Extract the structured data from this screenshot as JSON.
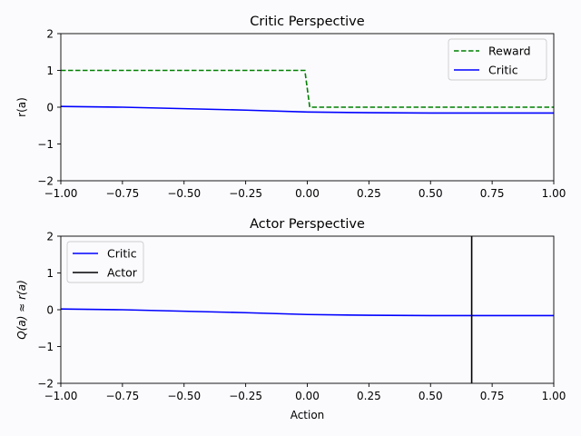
{
  "chart_data": [
    {
      "type": "line",
      "title": "Critic Perspective",
      "xlabel": "",
      "ylabel": "r(a)",
      "xlim": [
        -1.0,
        1.0
      ],
      "ylim": [
        -2,
        2
      ],
      "xticks": [
        "−1.00",
        "−0.75",
        "−0.50",
        "−0.25",
        "0.00",
        "0.25",
        "0.50",
        "0.75",
        "1.00"
      ],
      "yticks": [
        "−2",
        "−1",
        "0",
        "1",
        "2"
      ],
      "legend_position": "top-right",
      "grid": false,
      "series": [
        {
          "name": "Reward",
          "color": "#008000",
          "style": "dashed",
          "x": [
            -1.0,
            -0.01,
            0.01,
            1.0
          ],
          "y": [
            1,
            1,
            0,
            0
          ]
        },
        {
          "name": "Critic",
          "color": "#0000ff",
          "style": "solid",
          "x": [
            -1.0,
            -0.75,
            -0.5,
            -0.25,
            0.0,
            0.25,
            0.5,
            0.75,
            1.0
          ],
          "y": [
            0.02,
            0.0,
            -0.04,
            -0.08,
            -0.13,
            -0.15,
            -0.16,
            -0.16,
            -0.16
          ]
        }
      ]
    },
    {
      "type": "line",
      "title": "Actor Perspective",
      "xlabel": "Action",
      "ylabel": "Q(a) ≈ r(a)",
      "xlim": [
        -1.0,
        1.0
      ],
      "ylim": [
        -2,
        2
      ],
      "xticks": [
        "−1.00",
        "−0.75",
        "−0.50",
        "−0.25",
        "0.00",
        "0.25",
        "0.50",
        "0.75",
        "1.00"
      ],
      "yticks": [
        "−2",
        "−1",
        "0",
        "1",
        "2"
      ],
      "legend_position": "top-left",
      "grid": false,
      "series": [
        {
          "name": "Critic",
          "color": "#0000ff",
          "style": "solid",
          "x": [
            -1.0,
            -0.75,
            -0.5,
            -0.25,
            0.0,
            0.25,
            0.5,
            0.75,
            1.0
          ],
          "y": [
            0.02,
            0.0,
            -0.04,
            -0.08,
            -0.13,
            -0.15,
            -0.16,
            -0.16,
            -0.16
          ]
        },
        {
          "name": "Actor",
          "color": "#000000",
          "style": "vertical",
          "x_value": 0.667
        }
      ]
    }
  ]
}
